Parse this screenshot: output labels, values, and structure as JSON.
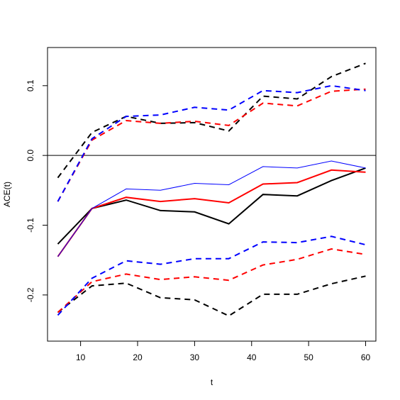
{
  "chart_data": {
    "type": "line",
    "title": "",
    "xlabel": "t",
    "ylabel": "ACE(t)",
    "xlim": [
      4.2,
      61.8
    ],
    "ylim": [
      -0.2662,
      0.1547
    ],
    "xticks": [
      10,
      20,
      30,
      40,
      50,
      60
    ],
    "xtick_labels": [
      "10",
      "20",
      "30",
      "40",
      "50",
      "60"
    ],
    "yticks": [
      -0.2,
      -0.1,
      0.0,
      0.1
    ],
    "ytick_labels": [
      "-0.2",
      "-0.1",
      "0.0",
      "0.1"
    ],
    "grid": false,
    "legend": "none",
    "reference_lines": [
      {
        "y": 0.0,
        "color": "#000000"
      }
    ],
    "x": [
      6,
      12,
      18,
      24,
      30,
      36,
      42,
      48,
      54,
      60
    ],
    "series": [
      {
        "color": "#000000",
        "style": "solid",
        "width": 2,
        "values": [
          -0.127,
          -0.076,
          -0.064,
          -0.079,
          -0.081,
          -0.098,
          -0.056,
          -0.058,
          -0.036,
          -0.018
        ]
      },
      {
        "color": "#ff0000",
        "style": "solid",
        "width": 2,
        "values": [
          -0.145,
          -0.076,
          -0.06,
          -0.066,
          -0.062,
          -0.068,
          -0.041,
          -0.039,
          -0.021,
          -0.024
        ]
      },
      {
        "color": "#0000ff",
        "style": "solid",
        "width": 1,
        "values": [
          -0.145,
          -0.076,
          -0.048,
          -0.05,
          -0.04,
          -0.042,
          -0.016,
          -0.018,
          -0.008,
          -0.018
        ]
      },
      {
        "color": "#000000",
        "style": "dashed",
        "width": 2,
        "values": [
          -0.032,
          0.033,
          0.056,
          0.046,
          0.047,
          0.035,
          0.085,
          0.081,
          0.113,
          0.132
        ]
      },
      {
        "color": "#ff0000",
        "style": "dashed",
        "width": 2,
        "values": [
          -0.066,
          0.022,
          0.05,
          0.046,
          0.049,
          0.043,
          0.075,
          0.071,
          0.092,
          0.095
        ]
      },
      {
        "color": "#0000ff",
        "style": "dashed",
        "width": 2,
        "values": [
          -0.066,
          0.024,
          0.056,
          0.058,
          0.069,
          0.065,
          0.093,
          0.09,
          0.1,
          0.093
        ]
      },
      {
        "color": "#000000",
        "style": "dashed",
        "width": 2,
        "values": [
          -0.225,
          -0.187,
          -0.183,
          -0.204,
          -0.207,
          -0.23,
          -0.199,
          -0.199,
          -0.184,
          -0.173
        ]
      },
      {
        "color": "#ff0000",
        "style": "dashed",
        "width": 2,
        "values": [
          -0.225,
          -0.181,
          -0.17,
          -0.178,
          -0.174,
          -0.179,
          -0.157,
          -0.149,
          -0.134,
          -0.142
        ]
      },
      {
        "color": "#0000ff",
        "style": "dashed",
        "width": 2,
        "values": [
          -0.229,
          -0.176,
          -0.151,
          -0.156,
          -0.148,
          -0.148,
          -0.124,
          -0.125,
          -0.116,
          -0.128
        ]
      }
    ]
  }
}
